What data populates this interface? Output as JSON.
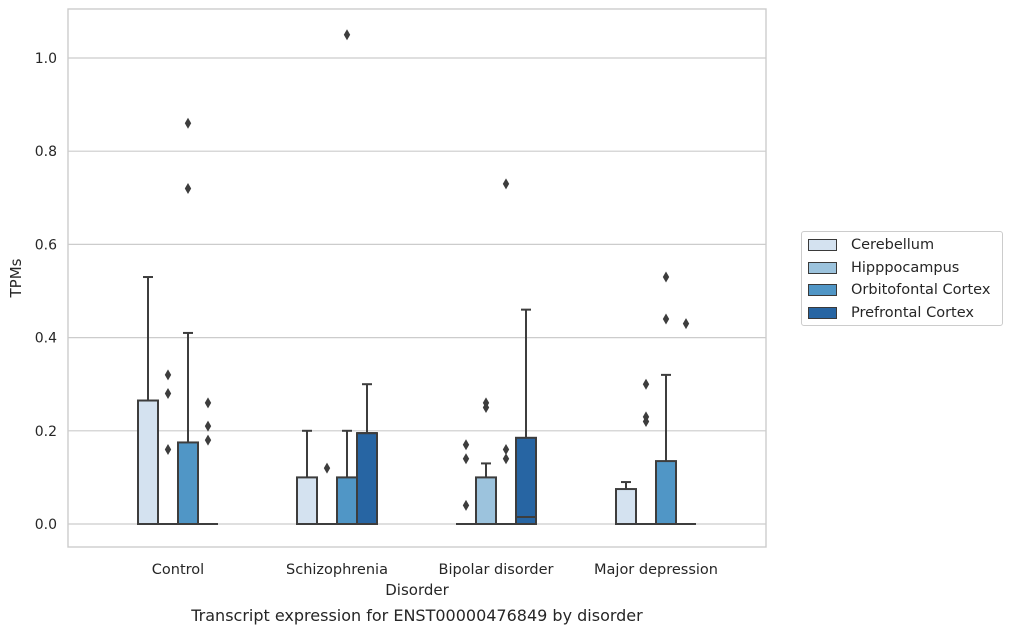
{
  "caption": "Transcript expression for ENST00000476849 by disorder",
  "chart_data": {
    "type": "box",
    "title": "",
    "xlabel": "Disorder",
    "ylabel": "TPMs",
    "ylim": [
      -0.05,
      1.1
    ],
    "yticks": [
      "0.0",
      "0.2",
      "0.4",
      "0.6",
      "0.8",
      "1.0"
    ],
    "grid": true,
    "legend_position": "right",
    "categories": [
      "Control",
      "Schizophrenia",
      "Bipolar disorder",
      "Major depression"
    ],
    "series": [
      {
        "name": "Cerebellum",
        "color": "#d4e2f0",
        "boxes": [
          {
            "q1": 0,
            "median": 0,
            "q3": 0.265,
            "whisker_low": 0,
            "whisker_high": 0.53,
            "outliers": []
          },
          {
            "q1": 0,
            "median": 0,
            "q3": 0.1,
            "whisker_low": 0,
            "whisker_high": 0.2,
            "outliers": []
          },
          {
            "q1": 0,
            "median": 0,
            "q3": 0,
            "whisker_low": 0,
            "whisker_high": 0,
            "outliers": []
          },
          {
            "q1": 0,
            "median": 0,
            "q3": 0.075,
            "whisker_low": 0,
            "whisker_high": 0.09,
            "outliers": []
          }
        ]
      },
      {
        "name": "Hipppocampus",
        "color": "#9cc3dd",
        "boxes": [
          {
            "q1": 0,
            "median": 0,
            "q3": 0,
            "whisker_low": 0,
            "whisker_high": 0,
            "outliers": [
              0.32,
              0.28,
              0.16
            ]
          },
          {
            "q1": 0,
            "median": 0,
            "q3": 0,
            "whisker_low": 0,
            "whisker_high": 0,
            "outliers": [
              0.12
            ]
          },
          {
            "q1": 0,
            "median": 0,
            "q3": 0.1,
            "whisker_low": 0,
            "whisker_high": 0.13,
            "outliers": [
              0.26,
              0.25
            ]
          },
          {
            "q1": 0,
            "median": 0,
            "q3": 0,
            "whisker_low": 0,
            "whisker_high": 0,
            "outliers": [
              0.3,
              0.23,
              0.22
            ]
          }
        ]
      },
      {
        "name": "Orbitofontal Cortex",
        "color": "#5096c6",
        "boxes": [
          {
            "q1": 0,
            "median": 0,
            "q3": 0.175,
            "whisker_low": 0,
            "whisker_high": 0.41,
            "outliers": [
              0.86,
              0.72
            ]
          },
          {
            "q1": 0,
            "median": 0,
            "q3": 0.1,
            "whisker_low": 0,
            "whisker_high": 0.2,
            "outliers": [
              1.05
            ]
          },
          {
            "q1": 0,
            "median": 0,
            "q3": 0,
            "whisker_low": 0,
            "whisker_high": 0,
            "outliers": [
              0.16,
              0.14,
              0.73
            ]
          },
          {
            "q1": 0,
            "median": 0,
            "q3": 0.135,
            "whisker_low": 0,
            "whisker_high": 0.32,
            "outliers": [
              0.53,
              0.44
            ]
          }
        ]
      },
      {
        "name": "Prefrontal Cortex",
        "color": "#2765a3",
        "boxes": [
          {
            "q1": 0,
            "median": 0,
            "q3": 0,
            "whisker_low": 0,
            "whisker_high": 0,
            "outliers": [
              0.26,
              0.21,
              0.18
            ]
          },
          {
            "q1": 0,
            "median": 0.195,
            "q3": 0.195,
            "whisker_low": 0,
            "whisker_high": 0.3,
            "outliers": []
          },
          {
            "q1": 0,
            "median": 0.015,
            "q3": 0.185,
            "whisker_low": 0,
            "whisker_high": 0.46,
            "outliers": []
          },
          {
            "q1": 0,
            "median": 0,
            "q3": 0,
            "whisker_low": 0,
            "whisker_high": 0,
            "outliers": [
              0.43
            ]
          }
        ]
      }
    ],
    "extra_points": [
      {
        "category": 2,
        "series": 0,
        "value": 0.17
      },
      {
        "category": 2,
        "series": 0,
        "value": 0.14
      },
      {
        "category": 2,
        "series": 0,
        "value": 0.04
      }
    ]
  }
}
